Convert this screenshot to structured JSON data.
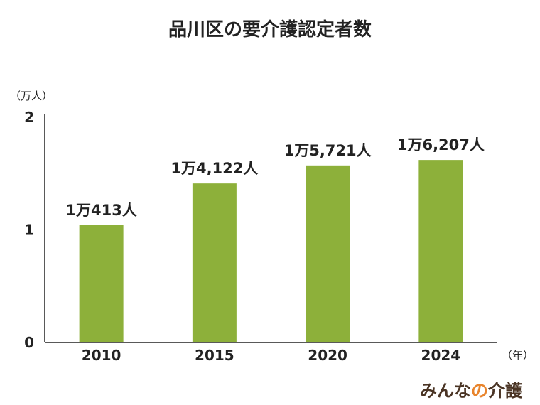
{
  "chart_data": {
    "type": "bar",
    "title": "品川区の要介護認定者数",
    "y_unit_label": "（万人）",
    "x_unit_label": "（年）",
    "categories": [
      "2010",
      "2015",
      "2020",
      "2024"
    ],
    "values": [
      1.0413,
      1.4122,
      1.5721,
      1.6207
    ],
    "data_labels": [
      "1万413人",
      "1万4,122人",
      "1万5,721人",
      "1万6,207人"
    ],
    "ylim": [
      0,
      2
    ],
    "y_ticks": [
      0,
      1,
      2
    ],
    "grid": false,
    "legend": "none",
    "bar_color": "#8db03a"
  },
  "logo": {
    "text_before": "みんな",
    "text_accent": "の",
    "text_after": "介護",
    "main_color": "#4a3424",
    "accent_color": "#e8842c"
  }
}
